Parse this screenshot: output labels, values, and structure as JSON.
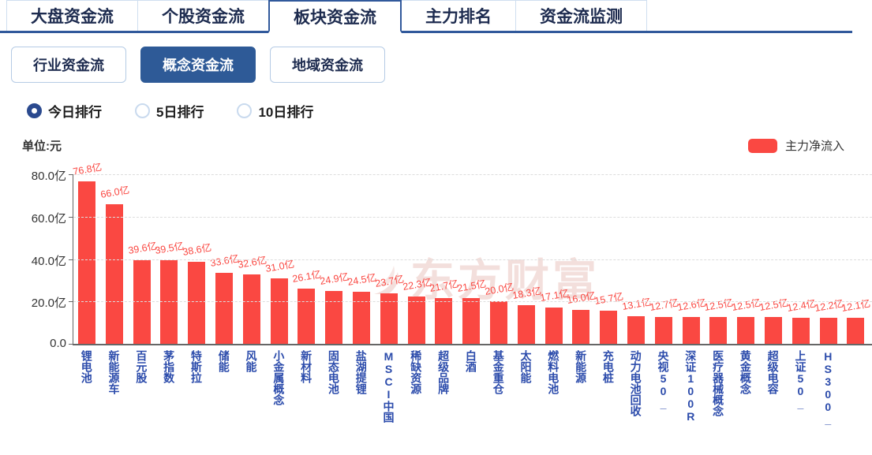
{
  "header_tabs": {
    "items": [
      {
        "label": "大盘资金流",
        "active": false
      },
      {
        "label": "个股资金流",
        "active": false
      },
      {
        "label": "板块资金流",
        "active": true
      },
      {
        "label": "主力排名",
        "active": false
      },
      {
        "label": "资金流监测",
        "active": false
      }
    ]
  },
  "sub_tabs": {
    "items": [
      {
        "label": "行业资金流",
        "active": false
      },
      {
        "label": "概念资金流",
        "active": true
      },
      {
        "label": "地域资金流",
        "active": false
      }
    ]
  },
  "period_filter": {
    "options": [
      {
        "label": "今日排行",
        "selected": true
      },
      {
        "label": "5日排行",
        "selected": false
      },
      {
        "label": "10日排行",
        "selected": false
      }
    ]
  },
  "chart_header": {
    "unit_label": "单位:元",
    "legend_label": "主力净流入",
    "legend_color": "#fa4842"
  },
  "watermark_text": "东方财富",
  "colors": {
    "tab_underline": "#31599b",
    "subtab_active_bg": "#2e5a97",
    "bar_red": "#fa4842",
    "xlabel_blue": "#2b4bab"
  },
  "chart_data": {
    "type": "bar",
    "series_name": "主力净流入",
    "unit": "亿",
    "categories": [
      "锂电池",
      "新能源车",
      "百元股",
      "茅指数",
      "特斯拉",
      "储能",
      "风能",
      "小金属概念",
      "新材料",
      "固态电池",
      "盐湖提锂",
      "MSCI中国",
      "稀缺资源",
      "超级品牌",
      "白酒",
      "基金重仓",
      "太阳能",
      "燃料电池",
      "新能源",
      "充电桩",
      "动力电池回收",
      "央视50_",
      "深证100R",
      "医疗器械概念",
      "黄金概念",
      "超级电容",
      "上证50_",
      "HS300_",
      ""
    ],
    "values": [
      76.8,
      66.0,
      39.6,
      39.5,
      38.6,
      33.6,
      32.6,
      31.0,
      26.1,
      24.9,
      24.5,
      23.7,
      22.3,
      21.7,
      21.5,
      20.0,
      18.3,
      17.1,
      16.0,
      15.7,
      13.1,
      12.7,
      12.6,
      12.5,
      12.5,
      12.5,
      12.4,
      12.2,
      12.1
    ],
    "value_labels": [
      "76.8亿",
      "66.0亿",
      "39.6亿",
      "39.5亿",
      "38.6亿",
      "33.6亿",
      "32.6亿",
      "31.0亿",
      "26.1亿",
      "24.9亿",
      "24.5亿",
      "23.7亿",
      "22.3亿",
      "21.7亿",
      "21.5亿",
      "20.0亿",
      "18.3亿",
      "17.1亿",
      "16.0亿",
      "15.7亿",
      "13.1亿",
      "12.7亿",
      "12.6亿",
      "12.5亿",
      "12.5亿",
      "12.5亿",
      "12.4亿",
      "12.2亿",
      "12.1亿"
    ],
    "y_ticks": [
      {
        "label": "80.0亿",
        "value": 80
      },
      {
        "label": "60.0亿",
        "value": 60
      },
      {
        "label": "40.0亿",
        "value": 40
      },
      {
        "label": "20.0亿",
        "value": 20
      },
      {
        "label": "0.0",
        "value": 0
      }
    ],
    "ylim": [
      0,
      80
    ],
    "grid": "dashed-horizontal",
    "legend_position": "top-right",
    "bar_color": "#fa4842",
    "value_label_color": "#fa4842",
    "category_label_color": "#2b4bab",
    "last_bar_partially_visible": true
  }
}
